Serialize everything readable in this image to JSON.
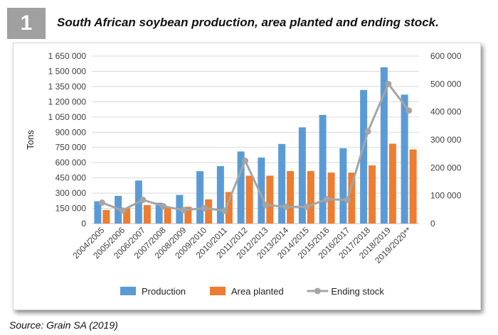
{
  "figure": {
    "number": "1",
    "title": "South African soybean production, area planted and ending stock.",
    "source": "Source: Grain SA (2019)"
  },
  "chart_data": {
    "type": "bar",
    "categories": [
      "2004/2005",
      "2005/2006",
      "2006/2007",
      "2007/2008",
      "2008/2009",
      "2009/2010",
      "2010/2011",
      "2011/2012",
      "2012/2013",
      "2013/2014",
      "2014/2015",
      "2015/2016",
      "2016/2017",
      "2017/2018",
      "2018/2019",
      "2019/2020**"
    ],
    "ylabel": "Tons",
    "ylim": [
      0,
      1650000
    ],
    "y_ticks": [
      "0",
      "150 000",
      "300 000",
      "450 000",
      "600 000",
      "750 000",
      "900 000",
      "1 050 000",
      "1 200 000",
      "1 350 000",
      "1 500 000",
      "1 650 000"
    ],
    "y2lim": [
      0,
      600000
    ],
    "y2_ticks": [
      "0",
      "100 000",
      "200 000",
      "300 000",
      "400 000",
      "500 000",
      "600 000"
    ],
    "grid": true,
    "legend_position": "bottom",
    "series": [
      {
        "name": "Production",
        "type": "bar",
        "axis": "left",
        "color": "#5b9bd5",
        "values": [
          220000,
          273000,
          424000,
          205000,
          282000,
          516000,
          566000,
          710000,
          650000,
          784000,
          948000,
          1070000,
          742000,
          1316000,
          1540000,
          1270000
        ]
      },
      {
        "name": "Area planted",
        "type": "bar",
        "axis": "left",
        "color": "#ed7d31",
        "values": [
          134000,
          150000,
          183000,
          165000,
          165000,
          238000,
          311000,
          472000,
          472000,
          517000,
          517000,
          502000,
          502000,
          573000,
          787000,
          730000
        ]
      },
      {
        "name": "Ending stock",
        "type": "line",
        "axis": "right",
        "color": "#a5a5a5",
        "values": [
          75000,
          47000,
          85000,
          62000,
          48000,
          55000,
          46000,
          225000,
          67000,
          60000,
          60000,
          87000,
          85000,
          330000,
          500000,
          405000
        ]
      }
    ]
  }
}
